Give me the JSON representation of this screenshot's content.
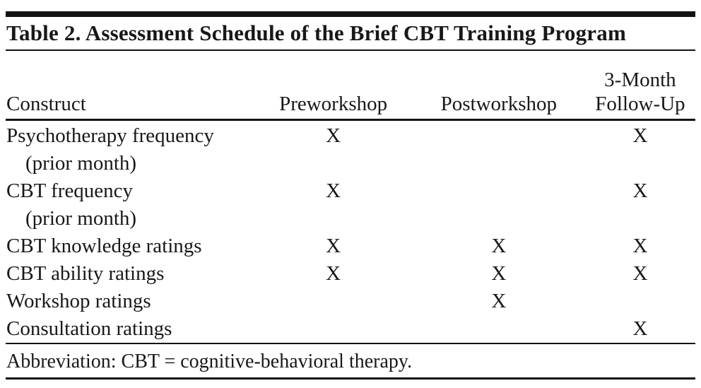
{
  "title": "Table 2. Assessment Schedule of the Brief CBT Training Program",
  "table": {
    "header": {
      "construct": "Construct",
      "preworkshop": "Preworkshop",
      "postworkshop": "Postworkshop",
      "followup_line1": "3-Month",
      "followup_line2": "Follow-Up"
    },
    "mark": "X",
    "rows": [
      {
        "construct": "Psychotherapy frequency",
        "preworkshop": "X",
        "postworkshop": "",
        "followup": "X"
      },
      {
        "construct": "(prior month)",
        "preworkshop": "",
        "postworkshop": "",
        "followup": ""
      },
      {
        "construct": "CBT frequency",
        "preworkshop": "X",
        "postworkshop": "",
        "followup": "X"
      },
      {
        "construct": "(prior month)",
        "preworkshop": "",
        "postworkshop": "",
        "followup": ""
      },
      {
        "construct": "CBT knowledge ratings",
        "preworkshop": "X",
        "postworkshop": "X",
        "followup": "X"
      },
      {
        "construct": "CBT ability ratings",
        "preworkshop": "X",
        "postworkshop": "X",
        "followup": "X"
      },
      {
        "construct": "Workshop ratings",
        "preworkshop": "",
        "postworkshop": "X",
        "followup": ""
      },
      {
        "construct": "Consultation ratings",
        "preworkshop": "",
        "postworkshop": "",
        "followup": "X"
      }
    ]
  },
  "footnote": "Abbreviation: CBT = cognitive-behavioral therapy.",
  "colors": {
    "text": "#181818",
    "rule": "#121212",
    "background": "#ffffff"
  }
}
